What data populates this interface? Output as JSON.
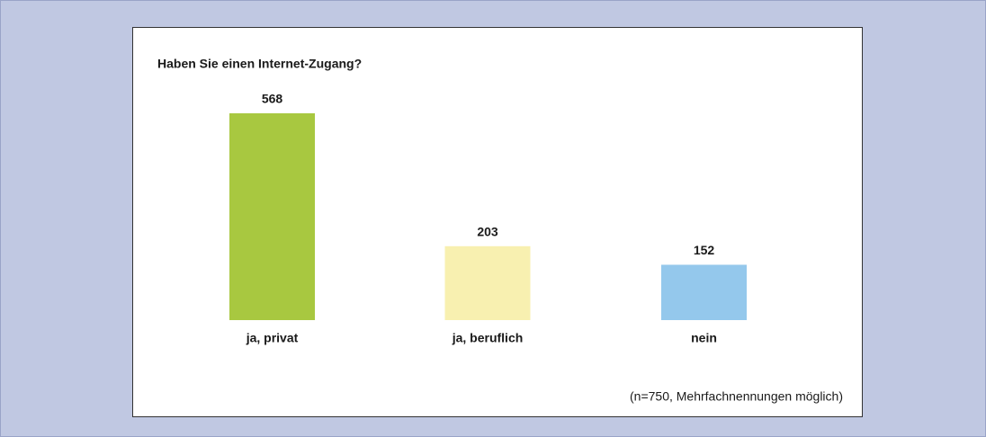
{
  "chart_data": {
    "type": "bar",
    "title": "Haben Sie einen Internet-Zugang?",
    "categories": [
      "ja, privat",
      "ja, beruflich",
      "nein"
    ],
    "values": [
      568,
      203,
      152
    ],
    "colors": [
      "#a8c840",
      "#f8f0b0",
      "#94c8ec"
    ],
    "note": "(n=750, Mehrfachnennungen möglich)"
  }
}
